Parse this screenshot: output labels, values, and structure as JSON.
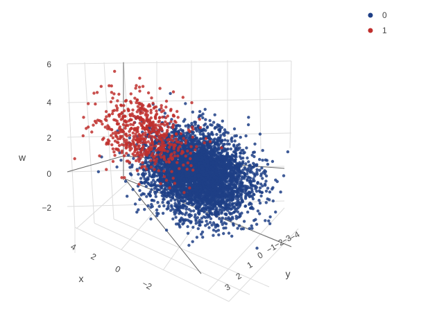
{
  "chart_data": {
    "type": "scatter",
    "subtype": "scatter3d",
    "title": "",
    "axes": {
      "x": {
        "label": "x",
        "ticks": [
          "4",
          "2",
          "0",
          "−2"
        ]
      },
      "y": {
        "label": "y",
        "ticks": [
          "3",
          "2",
          "1",
          "0",
          "−1",
          "−2",
          "−3",
          "−4"
        ]
      },
      "w": {
        "label": "w",
        "ticks": [
          "6",
          "4",
          "2",
          "0",
          "−2"
        ],
        "range": [
          -3.5,
          6
        ]
      }
    },
    "grid": true,
    "legend": {
      "position": "top-right",
      "entries": [
        "0",
        "1"
      ]
    },
    "series": [
      {
        "name": "0",
        "color": "#1f3f86",
        "n_points": 4500,
        "center": {
          "x": 0,
          "y": 0,
          "w": 0
        },
        "spread": 1.0
      },
      {
        "name": "1",
        "color": "#c0302e",
        "n_points": 600,
        "center": {
          "x": 1.5,
          "y": -1.5,
          "w": 1.8
        },
        "spread": 0.9
      }
    ]
  }
}
